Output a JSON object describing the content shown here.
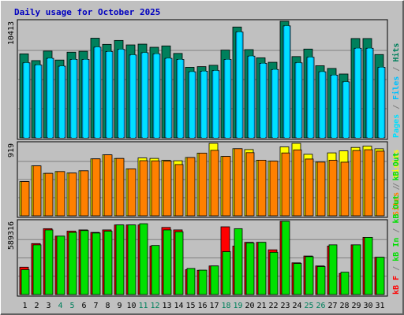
{
  "title": "Daily usage for October 2025",
  "colors": {
    "hits": "#00805c",
    "files": "#00c0ff",
    "pages": "#00e0ff",
    "visits": "#ffff00",
    "sites": "#ff8000",
    "kb_in": "#00e000",
    "kb_out": "#00e000",
    "kb_f": "#ff0000",
    "title": "#0000ff",
    "weekend_label": "#00805c",
    "weekday_label": "#000000"
  },
  "days": [
    "1",
    "2",
    "3",
    "4",
    "5",
    "6",
    "7",
    "8",
    "9",
    "10",
    "11",
    "12",
    "13",
    "14",
    "15",
    "16",
    "17",
    "18",
    "19",
    "20",
    "21",
    "22",
    "23",
    "24",
    "25",
    "26",
    "27",
    "28",
    "29",
    "30",
    "31"
  ],
  "weekend_days": [
    4,
    5,
    11,
    12,
    18,
    19,
    25,
    26
  ],
  "chart_data": [
    {
      "type": "bar",
      "panel": "hits",
      "max_label": "10413",
      "ylim": [
        0,
        10413
      ],
      "legend": [
        "Pages",
        "/",
        "Files",
        "/",
        "Hits"
      ],
      "legend_colors": [
        "#00e0ff",
        "#808080",
        "#00c0ff",
        "#808080",
        "#00805c"
      ],
      "series": [
        {
          "name": "Hits",
          "values": [
            7500,
            6900,
            7750,
            6950,
            7650,
            7730,
            8900,
            8350,
            8700,
            8300,
            8370,
            8090,
            8210,
            7540,
            6300,
            6360,
            6480,
            7840,
            9900,
            7880,
            7150,
            6750,
            10413,
            7260,
            7930,
            6440,
            6200,
            5700,
            8870,
            8870,
            7440
          ]
        },
        {
          "name": "Files",
          "values": [
            6700,
            6500,
            7100,
            6400,
            7000,
            7000,
            8100,
            7700,
            7900,
            7400,
            7600,
            7500,
            7100,
            7000,
            5900,
            5950,
            6000,
            7000,
            9450,
            7300,
            6650,
            6100,
            10000,
            6700,
            7200,
            5900,
            5600,
            5000,
            8000,
            8000,
            6300
          ]
        },
        {
          "name": "Pages",
          "values": [
            6700,
            6500,
            7100,
            6400,
            7000,
            7000,
            8100,
            7700,
            7900,
            7400,
            7600,
            7500,
            7100,
            7000,
            5900,
            5950,
            6000,
            7000,
            9450,
            7300,
            6650,
            6100,
            10000,
            6700,
            7200,
            5900,
            5600,
            5000,
            8000,
            8000,
            6300
          ]
        }
      ]
    },
    {
      "type": "bar",
      "panel": "visits",
      "max_label": "919",
      "ylim": [
        0,
        919
      ],
      "legend": [
        "Sites",
        "/",
        "Visits"
      ],
      "legend_colors": [
        "#ff8000",
        "#808080",
        "#ffff00"
      ],
      "series": [
        {
          "name": "Visits",
          "values": [
            434,
            633,
            538,
            561,
            542,
            571,
            722,
            773,
            727,
            595,
            734,
            728,
            704,
            698,
            739,
            795,
            919,
            753,
            851,
            840,
            705,
            693,
            874,
            919,
            780,
            681,
            798,
            823,
            867,
            884,
            850
          ]
        },
        {
          "name": "Sites",
          "values": [
            434,
            633,
            538,
            561,
            542,
            571,
            722,
            773,
            727,
            595,
            699,
            697,
            694,
            650,
            739,
            795,
            830,
            753,
            851,
            801,
            705,
            693,
            797,
            836,
            720,
            681,
            705,
            680,
            828,
            838,
            820
          ]
        }
      ]
    },
    {
      "type": "bar",
      "panel": "kbytes",
      "max_label": "589316",
      "ylim": [
        0,
        589316
      ],
      "legend": [
        "kB F",
        "/",
        "kB In",
        "/",
        "kB Out",
        "/",
        "kB Out"
      ],
      "legend_colors": [
        "#ff0000",
        "#808080",
        "#00e000",
        "#808080",
        "#00e000",
        "#808080",
        "#00e000"
      ],
      "series": [
        {
          "name": "kB F",
          "values": [
            220000,
            410000,
            530000,
            470000,
            510000,
            520000,
            500000,
            520000,
            560000,
            560000,
            560000,
            390000,
            540000,
            520000,
            200000,
            195000,
            230000,
            545000,
            390000,
            420000,
            420000,
            360000,
            589316,
            255000,
            310000,
            230000,
            390000,
            170000,
            400000,
            460000,
            300000
          ]
        },
        {
          "name": "kB Out",
          "values": [
            200000,
            400000,
            520000,
            470000,
            500000,
            515000,
            495000,
            510000,
            560000,
            560000,
            570000,
            395000,
            520000,
            505000,
            210000,
            196000,
            230000,
            345000,
            530000,
            415000,
            420000,
            340000,
            589316,
            250000,
            305000,
            225000,
            400000,
            180000,
            400000,
            460000,
            300000
          ]
        }
      ]
    }
  ]
}
